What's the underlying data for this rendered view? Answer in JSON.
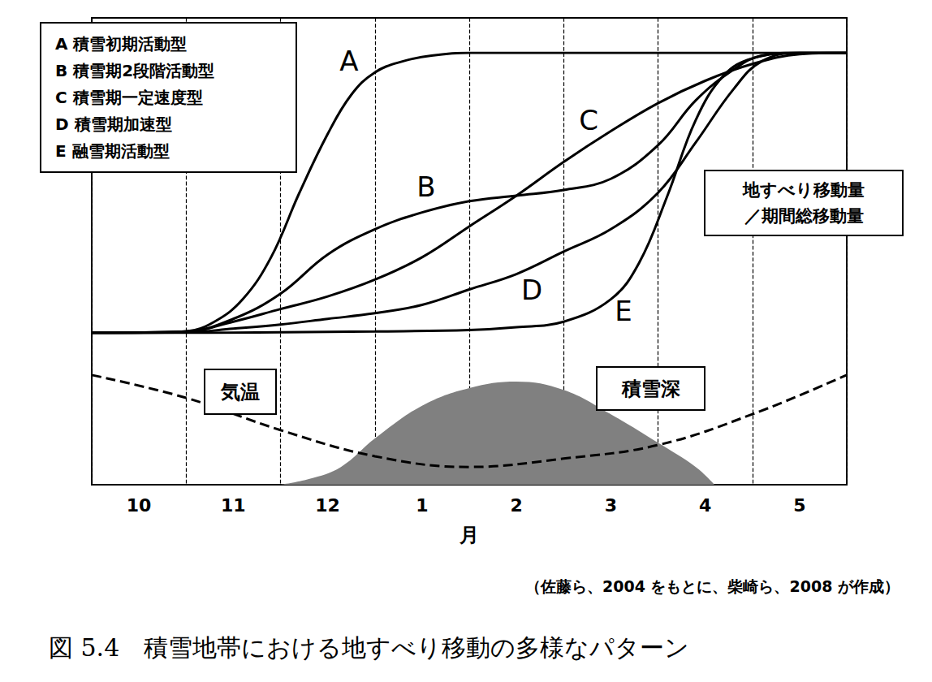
{
  "chart_data": {
    "type": "line",
    "title": "図 5.4　積雪地帯における地すべり移動の多様なパターン",
    "source": "（佐藤ら、2004 をもとに、柴崎ら、2008 が作成）",
    "xlabel": "月",
    "y_label": [
      "地すべり移動量",
      "／期間総移動量"
    ],
    "categories": [
      "10",
      "11",
      "12",
      "1",
      "2",
      "3",
      "4",
      "5"
    ],
    "xlim": [
      0,
      8
    ],
    "ylim": [
      0,
      1
    ],
    "y2lim": [
      0,
      100
    ],
    "grid": true,
    "tick_labels": "x",
    "legend": "upper left",
    "series": [
      {
        "name": "A 積雪初期活動型",
        "label": "A",
        "color": "#000000",
        "line_style": "solid",
        "x": [
          0,
          0.5,
          1,
          1.3,
          1.6,
          1.9,
          2.2,
          2.5,
          2.75,
          3.0,
          3.3,
          3.6,
          4,
          5,
          6,
          7,
          8
        ],
        "values": [
          0,
          0,
          0.005,
          0.04,
          0.12,
          0.27,
          0.5,
          0.71,
          0.85,
          0.93,
          0.97,
          0.99,
          1,
          1,
          1,
          1,
          1
        ]
      },
      {
        "name": "B 積雪期2段階活動型",
        "label": "B",
        "color": "#000000",
        "line_style": "solid",
        "x": [
          0,
          1,
          1.5,
          2,
          2.5,
          3,
          3.5,
          4,
          4.5,
          5,
          5.5,
          6,
          6.4,
          6.8,
          7.1,
          7.5,
          8
        ],
        "values": [
          0,
          0.005,
          0.05,
          0.14,
          0.28,
          0.37,
          0.43,
          0.47,
          0.49,
          0.51,
          0.55,
          0.67,
          0.83,
          0.94,
          0.99,
          1,
          1
        ]
      },
      {
        "name": "C 積雪期一定速度型",
        "label": "C",
        "color": "#000000",
        "line_style": "solid",
        "x": [
          0,
          1,
          1.5,
          2,
          2.5,
          3,
          3.5,
          4,
          4.5,
          5,
          5.5,
          6,
          6.5,
          7,
          7.5,
          8
        ],
        "values": [
          0,
          0.005,
          0.04,
          0.085,
          0.13,
          0.19,
          0.27,
          0.38,
          0.49,
          0.61,
          0.72,
          0.82,
          0.9,
          0.96,
          0.995,
          1
        ]
      },
      {
        "name": "D 積雪期加速型",
        "label": "D",
        "color": "#000000",
        "line_style": "solid",
        "x": [
          0,
          1,
          1.5,
          2,
          2.5,
          3,
          3.5,
          4,
          4.5,
          5,
          5.5,
          6,
          6.4,
          6.8,
          7.1,
          7.5,
          8
        ],
        "values": [
          0,
          0.002,
          0.015,
          0.03,
          0.05,
          0.07,
          0.1,
          0.155,
          0.21,
          0.29,
          0.37,
          0.5,
          0.68,
          0.87,
          0.97,
          1,
          1
        ]
      },
      {
        "name": "E 融雪期活動型",
        "label": "E",
        "color": "#000000",
        "line_style": "solid",
        "x": [
          0,
          1,
          2,
          3,
          4,
          4.5,
          5,
          5.5,
          5.8,
          6.1,
          6.4,
          6.7,
          7,
          7.5,
          8
        ],
        "values": [
          0,
          0,
          0.002,
          0.005,
          0.01,
          0.02,
          0.04,
          0.12,
          0.25,
          0.49,
          0.76,
          0.92,
          0.98,
          1,
          1
        ]
      },
      {
        "name": "積雪深",
        "type": "area",
        "color": "#808080",
        "axis": "y2",
        "x": [
          2,
          2.3,
          2.64,
          3,
          3.5,
          4,
          4.5,
          5,
          5.5,
          6,
          6.4,
          6.6
        ],
        "values": [
          0,
          1.2,
          3.8,
          9.9,
          16.9,
          20.7,
          22.1,
          20.3,
          15.1,
          9.0,
          3.8,
          0
        ]
      },
      {
        "name": "気温",
        "type": "line",
        "color": "#000000",
        "line_style": "dashed",
        "axis": "y2",
        "x": [
          0,
          1,
          2,
          3,
          4,
          5,
          6,
          7,
          8
        ],
        "values": [
          23.5,
          18.6,
          11.7,
          6.1,
          3.8,
          5.6,
          8.5,
          15.1,
          23.5
        ]
      }
    ]
  }
}
